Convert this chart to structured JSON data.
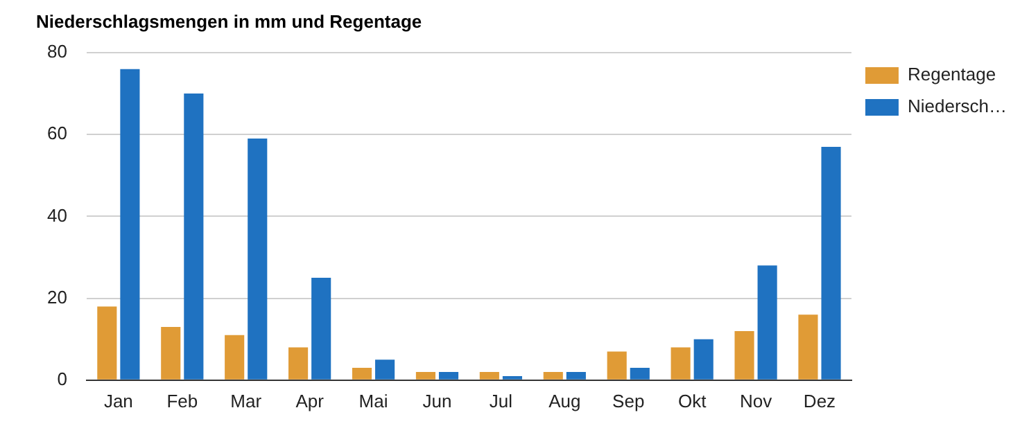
{
  "chart_data": {
    "type": "bar",
    "title": "Niederschlagsmengen in mm und Regentage",
    "categories": [
      "Jan",
      "Feb",
      "Mar",
      "Apr",
      "Mai",
      "Jun",
      "Jul",
      "Aug",
      "Sep",
      "Okt",
      "Nov",
      "Dez"
    ],
    "series": [
      {
        "name": "Regentage",
        "color": "#e09b36",
        "values": [
          18,
          13,
          11,
          8,
          3,
          2,
          2,
          2,
          7,
          8,
          12,
          16
        ]
      },
      {
        "name": "Niedersch…",
        "color": "#1f72c1",
        "values": [
          76,
          70,
          59,
          25,
          5,
          2,
          1,
          2,
          3,
          10,
          28,
          57
        ]
      }
    ],
    "ylim": [
      0,
      80
    ],
    "yticks": [
      0,
      20,
      40,
      60,
      80
    ],
    "grid": "y",
    "legend": "top right"
  }
}
